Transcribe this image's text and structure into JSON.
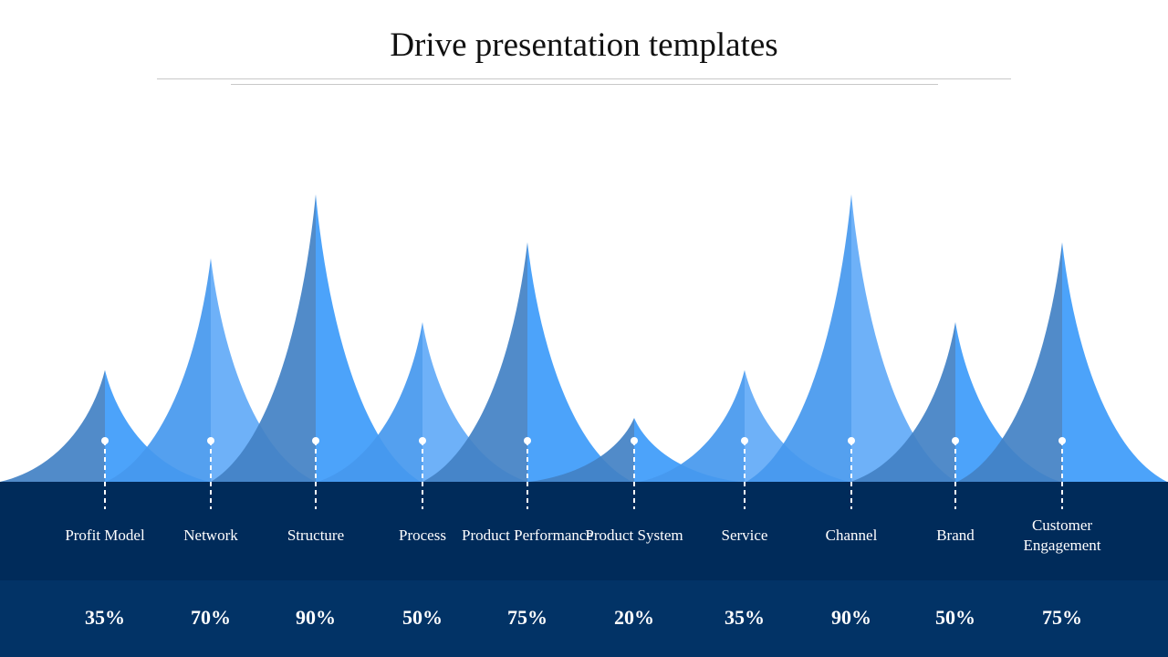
{
  "title": "Drive presentation templates",
  "colors": {
    "dark_left": "#4281c4",
    "dark_right": "#3d9bfa",
    "light_left": "#4598ee",
    "light_right": "#62aaf7",
    "band_top": "#002b5a",
    "band_bottom": "#023366"
  },
  "items": [
    {
      "label": "Profit Model",
      "value": "35%",
      "pct": 35,
      "style": "dark"
    },
    {
      "label": "Network",
      "value": "70%",
      "pct": 70,
      "style": "light"
    },
    {
      "label": "Structure",
      "value": "90%",
      "pct": 90,
      "style": "dark"
    },
    {
      "label": "Process",
      "value": "50%",
      "pct": 50,
      "style": "light"
    },
    {
      "label": "Product Performance",
      "value": "75%",
      "pct": 75,
      "style": "dark"
    },
    {
      "label": "Product System",
      "value": "20%",
      "pct": 20,
      "style": "dark"
    },
    {
      "label": "Service",
      "value": "35%",
      "pct": 35,
      "style": "light"
    },
    {
      "label": "Channel",
      "value": "90%",
      "pct": 90,
      "style": "light"
    },
    {
      "label": "Brand",
      "value": "50%",
      "pct": 50,
      "style": "dark"
    },
    {
      "label": "Customer Engagement",
      "value": "75%",
      "pct": 75,
      "style": "dark"
    }
  ]
}
